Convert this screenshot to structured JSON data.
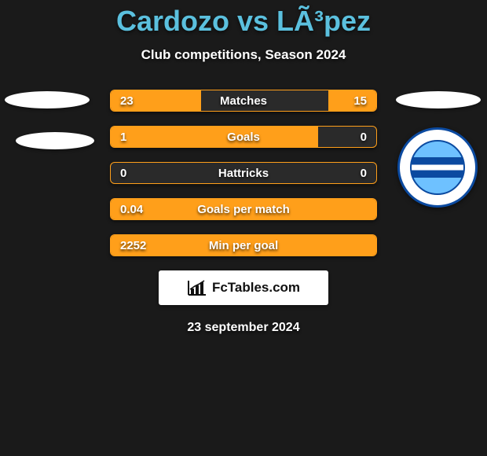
{
  "colors": {
    "background": "#1a1a1a",
    "title": "#5bc0de",
    "text": "#ffffff",
    "bar_fill": "#ff9f1a",
    "bar_border": "#ff9f1a",
    "bar_bg": "#2a2a2a",
    "brand_bg": "#ffffff",
    "brand_text": "#111111",
    "shield_blue": "#0b4aa0",
    "shield_cyan": "#6ec1ff"
  },
  "title": "Cardozo vs LÃ³pez",
  "subtitle": "Club competitions, Season 2024",
  "brand": "FcTables.com",
  "date": "23 september 2024",
  "rows": [
    {
      "label": "Matches",
      "left": "23",
      "right": "15",
      "left_pct": 34,
      "right_pct": 18
    },
    {
      "label": "Goals",
      "left": "1",
      "right": "0",
      "left_pct": 78,
      "right_pct": 0
    },
    {
      "label": "Hattricks",
      "left": "0",
      "right": "0",
      "left_pct": 0,
      "right_pct": 0
    },
    {
      "label": "Goals per match",
      "left": "0.04",
      "right": "",
      "left_pct": 100,
      "right_pct": 0
    },
    {
      "label": "Min per goal",
      "left": "2252",
      "right": "",
      "left_pct": 100,
      "right_pct": 0
    }
  ]
}
